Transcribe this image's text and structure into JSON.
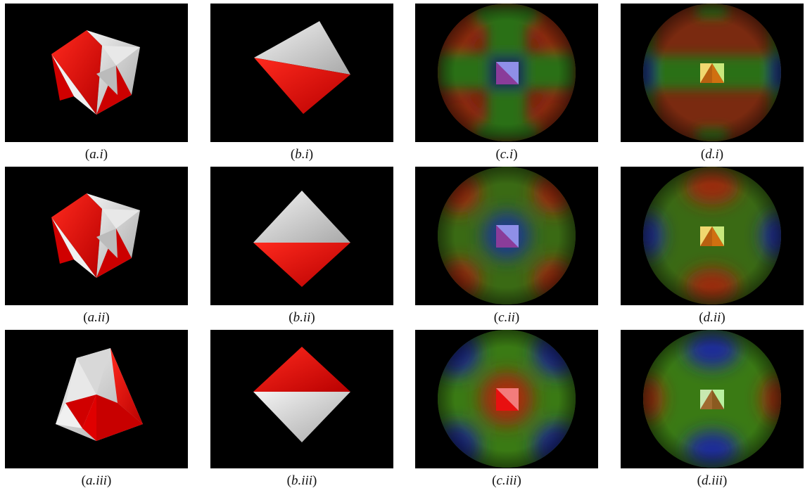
{
  "figure": {
    "rows": [
      {
        "captions": [
          {
            "letter": "a",
            "numeral": "i"
          },
          {
            "letter": "b",
            "numeral": "i"
          },
          {
            "letter": "c",
            "numeral": "i"
          },
          {
            "letter": "d",
            "numeral": "i"
          }
        ]
      },
      {
        "captions": [
          {
            "letter": "a",
            "numeral": "ii"
          },
          {
            "letter": "b",
            "numeral": "ii"
          },
          {
            "letter": "c",
            "numeral": "ii"
          },
          {
            "letter": "d",
            "numeral": "ii"
          }
        ]
      },
      {
        "captions": [
          {
            "letter": "a",
            "numeral": "iii"
          },
          {
            "letter": "b",
            "numeral": "iii"
          },
          {
            "letter": "c",
            "numeral": "iii"
          },
          {
            "letter": "d",
            "numeral": "iii"
          }
        ]
      }
    ]
  },
  "colors": {
    "background": "#000000",
    "face_red": "#e00000",
    "face_white": "#d8d8d8",
    "map_red": "#8a1f10",
    "map_green": "#1f6a12",
    "map_blue": "#101a8a"
  }
}
